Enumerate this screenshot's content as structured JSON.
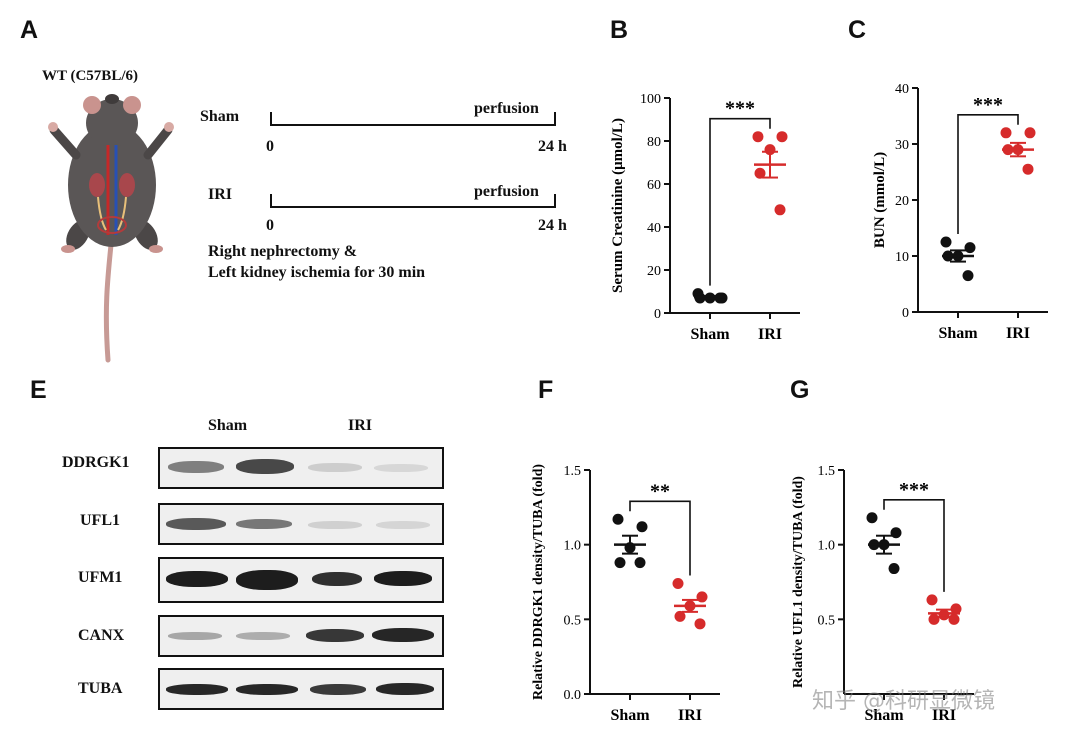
{
  "panels": {
    "A": "A",
    "B": "B",
    "C": "C",
    "E": "E",
    "F": "F",
    "G": "G"
  },
  "panelA": {
    "mouse_label": "WT (C57BL/6)",
    "sham": {
      "label": "Sham",
      "phase": "perfusion",
      "start": "0",
      "end": "24 h"
    },
    "iri": {
      "label": "IRI",
      "phase": "perfusion",
      "start": "0",
      "end": "24 h"
    },
    "note_line1": "Right nephrectomy &",
    "note_line2": "Left kidney ischemia for 30 min"
  },
  "panelE": {
    "group_labels": [
      "Sham",
      "IRI"
    ],
    "rows": [
      "DDRGK1",
      "UFL1",
      "UFM1",
      "CANX",
      "TUBA"
    ]
  },
  "watermark": "知乎 @科研显微镜",
  "colors": {
    "sham": "#111111",
    "iri": "#d62b2b"
  },
  "chart_data": [
    {
      "panel": "B",
      "type": "scatter",
      "ylabel": "Serum Creatinine (μmol/L)",
      "xlabel": "",
      "categories": [
        "Sham",
        "IRI"
      ],
      "ylim": [
        0,
        100
      ],
      "yticks": [
        "0",
        "20",
        "40",
        "60",
        "80",
        "100"
      ],
      "series": [
        {
          "name": "Sham",
          "points": [
            9,
            7,
            7,
            7,
            7
          ],
          "mean": 7.4,
          "sem": 0.5
        },
        {
          "name": "IRI",
          "points": [
            82,
            82,
            76,
            65,
            48
          ],
          "mean": 69,
          "sem": 6
        }
      ],
      "significance": "***"
    },
    {
      "panel": "C",
      "type": "scatter",
      "ylabel": "BUN (mmol/L)",
      "xlabel": "",
      "categories": [
        "Sham",
        "IRI"
      ],
      "ylim": [
        0,
        40
      ],
      "yticks": [
        "0",
        "10",
        "20",
        "30",
        "40"
      ],
      "series": [
        {
          "name": "Sham",
          "points": [
            12.5,
            11.5,
            10,
            10,
            6.5
          ],
          "mean": 10,
          "sem": 1
        },
        {
          "name": "IRI",
          "points": [
            32,
            32,
            29,
            29,
            25.5
          ],
          "mean": 29,
          "sem": 1.2
        }
      ],
      "significance": "***"
    },
    {
      "panel": "F",
      "type": "scatter",
      "ylabel": "Relative DDRGK1 density/TUBA (fold)",
      "xlabel": "",
      "categories": [
        "Sham",
        "IRI"
      ],
      "ylim": [
        0,
        1.5
      ],
      "yticks": [
        "0.0",
        "0.5",
        "1.0",
        "1.5"
      ],
      "series": [
        {
          "name": "Sham",
          "points": [
            1.17,
            1.12,
            0.98,
            0.88,
            0.88
          ],
          "mean": 1.0,
          "sem": 0.06
        },
        {
          "name": "IRI",
          "points": [
            0.74,
            0.65,
            0.59,
            0.52,
            0.47
          ],
          "mean": 0.59,
          "sem": 0.04
        }
      ],
      "significance": "**"
    },
    {
      "panel": "G",
      "type": "scatter",
      "ylabel": "Relative UFL1 density/TUBA (fold)",
      "xlabel": "",
      "categories": [
        "Sham",
        "IRI"
      ],
      "ylim": [
        0,
        1.5
      ],
      "yticks": [
        "0.5",
        "1.0",
        "1.5"
      ],
      "series": [
        {
          "name": "Sham",
          "points": [
            1.18,
            1.08,
            1.0,
            1.0,
            0.84
          ],
          "mean": 1.0,
          "sem": 0.06
        },
        {
          "name": "IRI",
          "points": [
            0.63,
            0.57,
            0.53,
            0.5,
            0.5
          ],
          "mean": 0.54,
          "sem": 0.025
        }
      ],
      "significance": "***"
    }
  ]
}
